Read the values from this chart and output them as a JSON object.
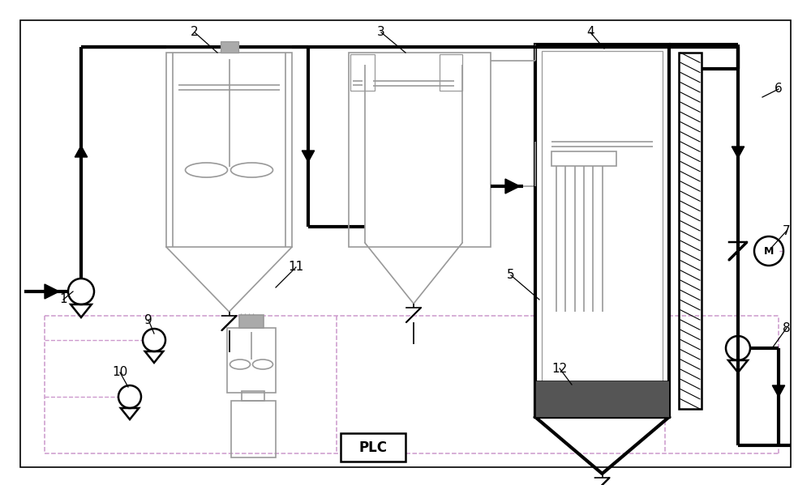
{
  "bg_color": "#ffffff",
  "lc": "#000000",
  "gc": "#999999",
  "dc": "#cc99cc",
  "tlw": 3.0,
  "mlw": 1.8,
  "slw": 1.2,
  "vlw": 0.9
}
